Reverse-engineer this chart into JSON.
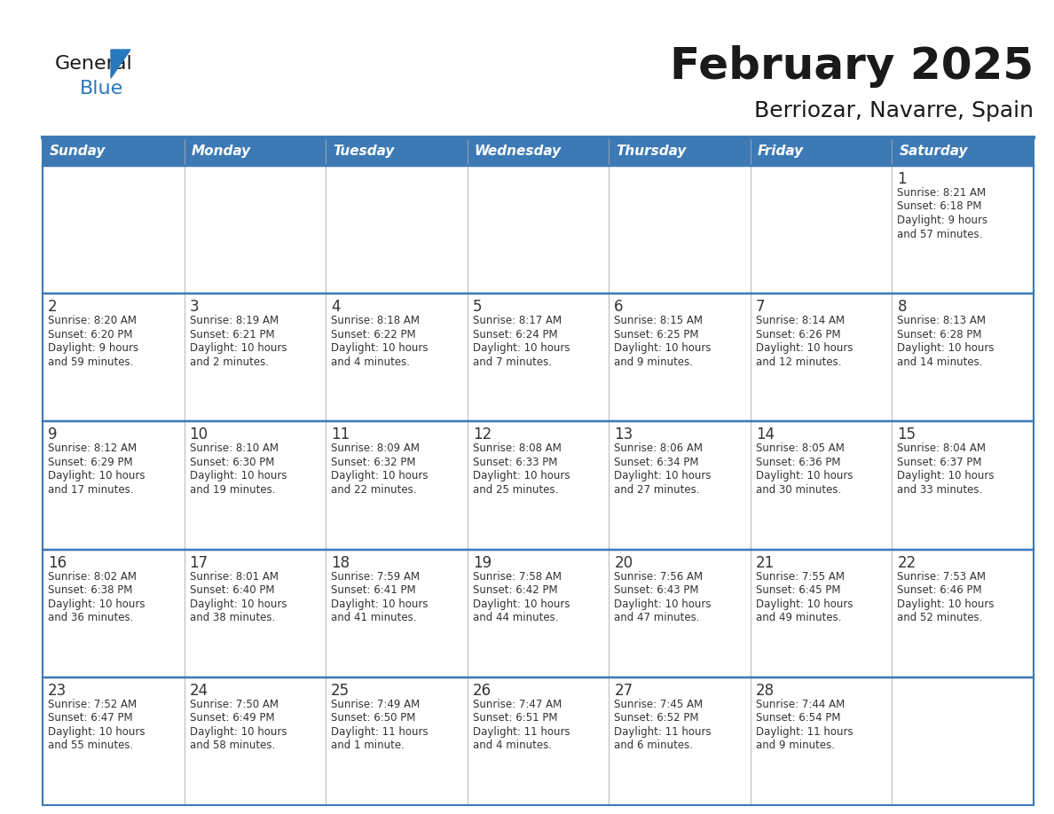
{
  "title": "February 2025",
  "subtitle": "Berriozar, Navarre, Spain",
  "header_bg": "#3D7AB5",
  "header_text": "#FFFFFF",
  "cell_bg": "#FFFFFF",
  "cell_bg_alt": "#F2F2F2",
  "border_color": "#3D7AB5",
  "text_color": "#333333",
  "day_headers": [
    "Sunday",
    "Monday",
    "Tuesday",
    "Wednesday",
    "Thursday",
    "Friday",
    "Saturday"
  ],
  "weeks": [
    [
      {
        "day": "",
        "info": ""
      },
      {
        "day": "",
        "info": ""
      },
      {
        "day": "",
        "info": ""
      },
      {
        "day": "",
        "info": ""
      },
      {
        "day": "",
        "info": ""
      },
      {
        "day": "",
        "info": ""
      },
      {
        "day": "1",
        "info": "Sunrise: 8:21 AM\nSunset: 6:18 PM\nDaylight: 9 hours\nand 57 minutes."
      }
    ],
    [
      {
        "day": "2",
        "info": "Sunrise: 8:20 AM\nSunset: 6:20 PM\nDaylight: 9 hours\nand 59 minutes."
      },
      {
        "day": "3",
        "info": "Sunrise: 8:19 AM\nSunset: 6:21 PM\nDaylight: 10 hours\nand 2 minutes."
      },
      {
        "day": "4",
        "info": "Sunrise: 8:18 AM\nSunset: 6:22 PM\nDaylight: 10 hours\nand 4 minutes."
      },
      {
        "day": "5",
        "info": "Sunrise: 8:17 AM\nSunset: 6:24 PM\nDaylight: 10 hours\nand 7 minutes."
      },
      {
        "day": "6",
        "info": "Sunrise: 8:15 AM\nSunset: 6:25 PM\nDaylight: 10 hours\nand 9 minutes."
      },
      {
        "day": "7",
        "info": "Sunrise: 8:14 AM\nSunset: 6:26 PM\nDaylight: 10 hours\nand 12 minutes."
      },
      {
        "day": "8",
        "info": "Sunrise: 8:13 AM\nSunset: 6:28 PM\nDaylight: 10 hours\nand 14 minutes."
      }
    ],
    [
      {
        "day": "9",
        "info": "Sunrise: 8:12 AM\nSunset: 6:29 PM\nDaylight: 10 hours\nand 17 minutes."
      },
      {
        "day": "10",
        "info": "Sunrise: 8:10 AM\nSunset: 6:30 PM\nDaylight: 10 hours\nand 19 minutes."
      },
      {
        "day": "11",
        "info": "Sunrise: 8:09 AM\nSunset: 6:32 PM\nDaylight: 10 hours\nand 22 minutes."
      },
      {
        "day": "12",
        "info": "Sunrise: 8:08 AM\nSunset: 6:33 PM\nDaylight: 10 hours\nand 25 minutes."
      },
      {
        "day": "13",
        "info": "Sunrise: 8:06 AM\nSunset: 6:34 PM\nDaylight: 10 hours\nand 27 minutes."
      },
      {
        "day": "14",
        "info": "Sunrise: 8:05 AM\nSunset: 6:36 PM\nDaylight: 10 hours\nand 30 minutes."
      },
      {
        "day": "15",
        "info": "Sunrise: 8:04 AM\nSunset: 6:37 PM\nDaylight: 10 hours\nand 33 minutes."
      }
    ],
    [
      {
        "day": "16",
        "info": "Sunrise: 8:02 AM\nSunset: 6:38 PM\nDaylight: 10 hours\nand 36 minutes."
      },
      {
        "day": "17",
        "info": "Sunrise: 8:01 AM\nSunset: 6:40 PM\nDaylight: 10 hours\nand 38 minutes."
      },
      {
        "day": "18",
        "info": "Sunrise: 7:59 AM\nSunset: 6:41 PM\nDaylight: 10 hours\nand 41 minutes."
      },
      {
        "day": "19",
        "info": "Sunrise: 7:58 AM\nSunset: 6:42 PM\nDaylight: 10 hours\nand 44 minutes."
      },
      {
        "day": "20",
        "info": "Sunrise: 7:56 AM\nSunset: 6:43 PM\nDaylight: 10 hours\nand 47 minutes."
      },
      {
        "day": "21",
        "info": "Sunrise: 7:55 AM\nSunset: 6:45 PM\nDaylight: 10 hours\nand 49 minutes."
      },
      {
        "day": "22",
        "info": "Sunrise: 7:53 AM\nSunset: 6:46 PM\nDaylight: 10 hours\nand 52 minutes."
      }
    ],
    [
      {
        "day": "23",
        "info": "Sunrise: 7:52 AM\nSunset: 6:47 PM\nDaylight: 10 hours\nand 55 minutes."
      },
      {
        "day": "24",
        "info": "Sunrise: 7:50 AM\nSunset: 6:49 PM\nDaylight: 10 hours\nand 58 minutes."
      },
      {
        "day": "25",
        "info": "Sunrise: 7:49 AM\nSunset: 6:50 PM\nDaylight: 11 hours\nand 1 minute."
      },
      {
        "day": "26",
        "info": "Sunrise: 7:47 AM\nSunset: 6:51 PM\nDaylight: 11 hours\nand 4 minutes."
      },
      {
        "day": "27",
        "info": "Sunrise: 7:45 AM\nSunset: 6:52 PM\nDaylight: 11 hours\nand 6 minutes."
      },
      {
        "day": "28",
        "info": "Sunrise: 7:44 AM\nSunset: 6:54 PM\nDaylight: 11 hours\nand 9 minutes."
      },
      {
        "day": "",
        "info": ""
      }
    ]
  ],
  "logo_general_color": "#1a1a1a",
  "logo_blue_color": "#2878BE",
  "logo_triangle_color": "#2878BE"
}
